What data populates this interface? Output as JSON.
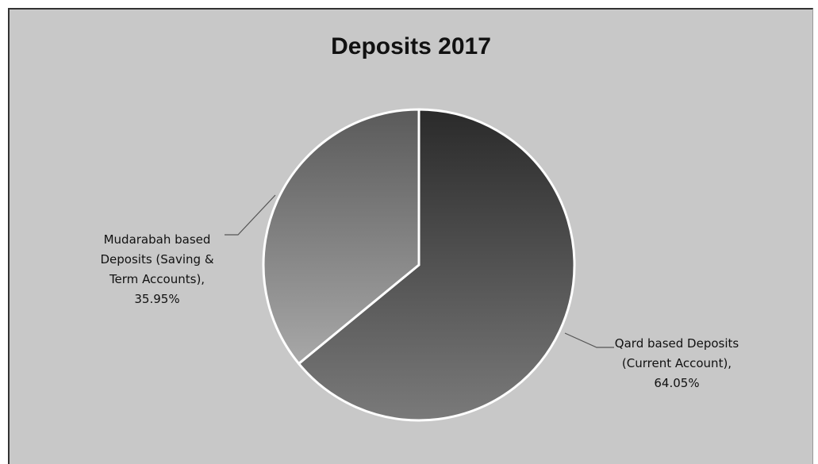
{
  "chart_data": {
    "type": "pie",
    "title": "Deposits 2017",
    "slices": [
      {
        "label_lines": [
          "Qard based Deposits",
          "(Current Account),",
          "64.05%"
        ],
        "value": 64.05,
        "color": "#4a4a4a"
      },
      {
        "label_lines": [
          "Mudarabah based",
          "Deposits (Saving &",
          "Term Accounts),",
          "35.95%"
        ],
        "value": 35.95,
        "color": "#8a8a8a"
      }
    ]
  }
}
